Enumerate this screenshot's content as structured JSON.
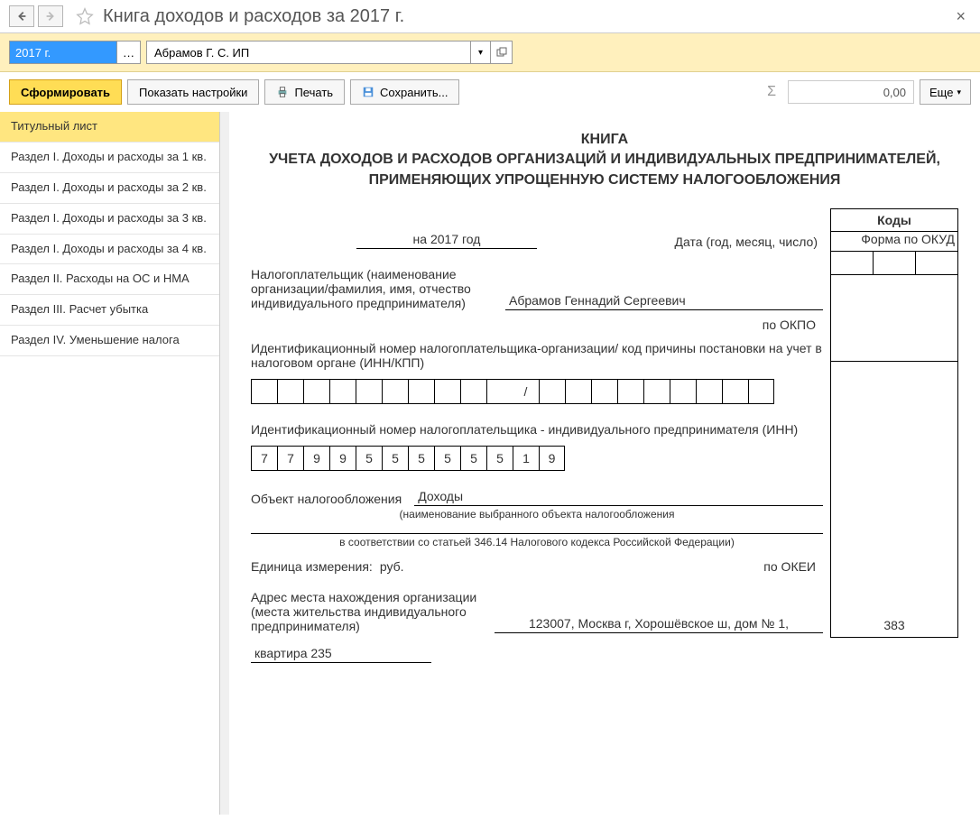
{
  "title": "Книга доходов и расходов за 2017 г.",
  "params": {
    "period": "2017 г.",
    "organization": "Абрамов Г. С. ИП"
  },
  "toolbar": {
    "form": "Сформировать",
    "settings": "Показать настройки",
    "print": "Печать",
    "save": "Сохранить...",
    "sum": "0,00",
    "more": "Еще"
  },
  "nav": [
    "Титульный лист",
    "Раздел I. Доходы и расходы за 1 кв.",
    "Раздел I. Доходы и расходы за 2 кв.",
    "Раздел I. Доходы и расходы за 3 кв.",
    "Раздел I. Доходы и расходы за 4 кв.",
    "Раздел II. Расходы на ОС и НМА",
    "Раздел III. Расчет убытка",
    "Раздел IV. Уменьшение налога"
  ],
  "nav_active": 0,
  "doc": {
    "heading_l1": "КНИГА",
    "heading_l2": "УЧЕТА ДОХОДОВ И РАСХОДОВ ОРГАНИЗАЦИЙ И ИНДИВИДУАЛЬНЫХ ПРЕДПРИНИМАТЕЛЕЙ, ПРИМЕНЯЮЩИХ УПРОЩЕННУЮ СИСТЕМУ НАЛОГООБЛОЖЕНИЯ",
    "codes_header": "Коды",
    "okud_label": "Форма по ОКУД",
    "year_value": "на 2017 год",
    "date_label": "Дата (год, месяц, число)",
    "taxpayer_label": "Налогоплательщик (наименование организации/фамилия, имя, отчество индивидуального предпринимателя)",
    "taxpayer_value": "Абрамов Геннадий Сергеевич",
    "okpo_label": "по ОКПО",
    "inn_kpp_desc": "Идентификационный номер налогоплательщика-организации/ код причины постановки на учет в налоговом органе (ИНН/КПП)",
    "inn_kpp_cells": [
      "",
      "",
      "",
      "",
      "",
      "",
      "",
      "",
      "",
      "",
      "/",
      "",
      "",
      "",
      "",
      "",
      "",
      "",
      "",
      ""
    ],
    "inn_desc": "Идентификационный номер налогоплательщика - индивидуального предпринимателя (ИНН)",
    "inn_cells": [
      "7",
      "7",
      "9",
      "9",
      "5",
      "5",
      "5",
      "5",
      "5",
      "5",
      "1",
      "9"
    ],
    "obj_label": "Объект налогообложения",
    "obj_value": "Доходы",
    "obj_hint": "(наименование выбранного объекта налогообложения",
    "obj_hint2": "в соответствии со статьей 346.14 Налогового кодекса Российской Федерации)",
    "unit_label": "Единица измерения:",
    "unit_value": "руб.",
    "okei_label": "по ОКЕИ",
    "okei_value": "383",
    "addr_label": "Адрес места нахождения организации (места жительства индивидуального предпринимателя)",
    "addr_line1": "123007, Москва г, Хорошёвское ш, дом № 1,",
    "addr_line2": "квартира 235"
  }
}
